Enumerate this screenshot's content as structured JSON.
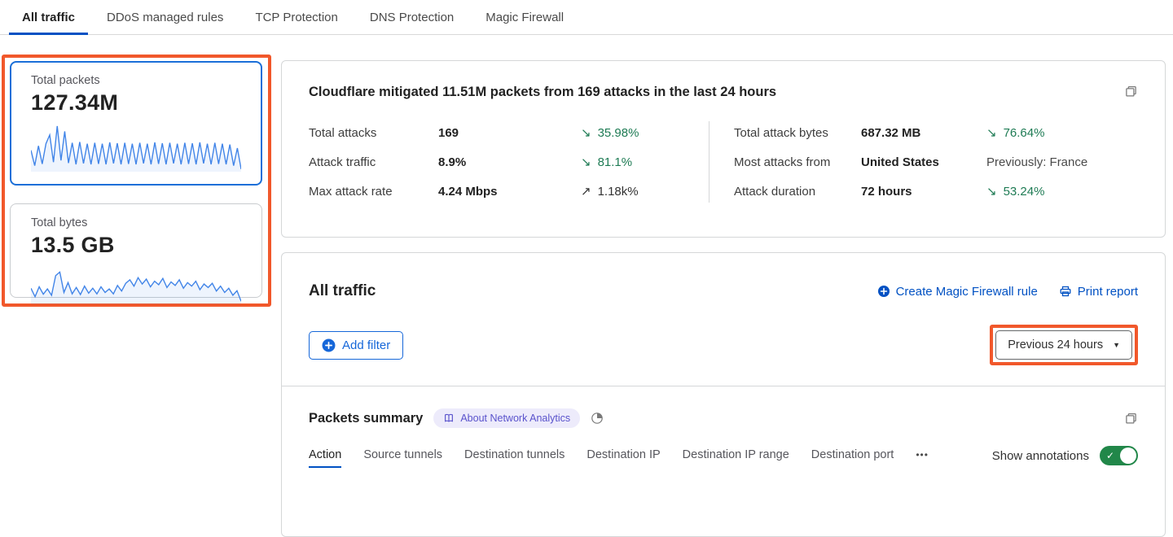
{
  "top_tabs": [
    {
      "label": "All traffic"
    },
    {
      "label": "DDoS managed rules"
    },
    {
      "label": "TCP Protection"
    },
    {
      "label": "DNS Protection"
    },
    {
      "label": "Magic Firewall"
    }
  ],
  "metric_cards": [
    {
      "title": "Total packets",
      "value": "127.34M",
      "sparkline": [
        0.45,
        0.1,
        0.55,
        0.14,
        0.6,
        0.8,
        0.18,
        1.0,
        0.22,
        0.88,
        0.16,
        0.62,
        0.13,
        0.64,
        0.15,
        0.6,
        0.13,
        0.62,
        0.14,
        0.6,
        0.13,
        0.63,
        0.15,
        0.61,
        0.13,
        0.62,
        0.14,
        0.6,
        0.13,
        0.62,
        0.15,
        0.6,
        0.13,
        0.63,
        0.14,
        0.61,
        0.13,
        0.62,
        0.15,
        0.6,
        0.13,
        0.62,
        0.14,
        0.61,
        0.13,
        0.63,
        0.15,
        0.6,
        0.13,
        0.62,
        0.14,
        0.6,
        0.13,
        0.58,
        0.1,
        0.5,
        0.02
      ]
    },
    {
      "title": "Total bytes",
      "value": "13.5 GB",
      "sparkline": [
        0.42,
        0.18,
        0.46,
        0.25,
        0.4,
        0.22,
        0.78,
        0.88,
        0.3,
        0.58,
        0.26,
        0.44,
        0.24,
        0.48,
        0.28,
        0.42,
        0.26,
        0.46,
        0.3,
        0.4,
        0.26,
        0.5,
        0.34,
        0.56,
        0.66,
        0.48,
        0.72,
        0.54,
        0.68,
        0.46,
        0.62,
        0.52,
        0.7,
        0.44,
        0.6,
        0.5,
        0.66,
        0.42,
        0.58,
        0.48,
        0.62,
        0.38,
        0.54,
        0.44,
        0.56,
        0.34,
        0.48,
        0.3,
        0.42,
        0.22,
        0.35,
        0.05
      ]
    }
  ],
  "mitigation_summary": {
    "title": "Cloudflare mitigated 11.51M packets from 169 attacks in the last 24 hours",
    "stats_left": [
      {
        "label": "Total attacks",
        "value": "169",
        "arrow": "↘",
        "change": "35.98%"
      },
      {
        "label": "Attack traffic",
        "value": "8.9%",
        "arrow": "↘",
        "change": "81.1%"
      },
      {
        "label": "Max attack rate",
        "value": "4.24 Mbps",
        "arrow": "↗",
        "change": "1.18k%"
      }
    ],
    "stats_right": [
      {
        "label": "Total attack bytes",
        "value": "687.32 MB",
        "arrow": "↘",
        "change": "76.64%"
      },
      {
        "label": "Most attacks from",
        "value": "United States",
        "arrow": "",
        "change": "Previously: France"
      },
      {
        "label": "Attack duration",
        "value": "72 hours",
        "arrow": "↘",
        "change": "53.24%"
      }
    ]
  },
  "traffic_panel": {
    "title": "All traffic",
    "create_rule_label": "Create Magic Firewall rule",
    "print_report_label": "Print report",
    "add_filter_label": "Add filter",
    "time_range_value": "Previous 24 hours"
  },
  "packets_summary": {
    "title": "Packets summary",
    "badge_label": "About Network Analytics",
    "subtabs": [
      {
        "label": "Action"
      },
      {
        "label": "Source tunnels"
      },
      {
        "label": "Destination tunnels"
      },
      {
        "label": "Destination IP"
      },
      {
        "label": "Destination IP range"
      },
      {
        "label": "Destination port"
      }
    ],
    "overflow_label": "•••",
    "show_annotations_label": "Show annotations",
    "annotations_on": true
  },
  "icons": {
    "caret_down": "▼",
    "check": "✓"
  },
  "colors": {
    "accent_blue": "#0051c3",
    "button_blue": "#1667d9",
    "selected_card_border": "#1b6fd8",
    "sparkline_blue": "#4285e8",
    "positive_green": "#1e7b54",
    "toggle_green": "#218749",
    "badge_bg": "#edebfb",
    "badge_text": "#5952cc",
    "annotation_orange": "#f1582b"
  }
}
